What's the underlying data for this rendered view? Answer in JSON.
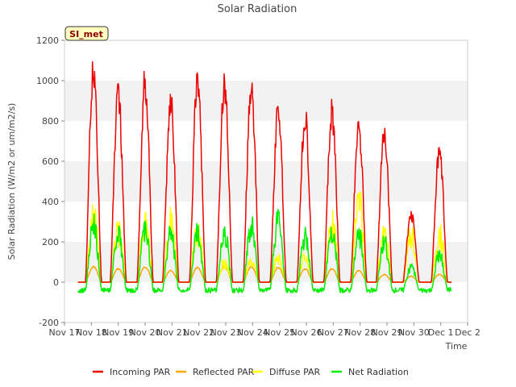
{
  "chart_data": {
    "type": "line",
    "title": "Solar Radiation",
    "xlabel": "Time",
    "ylabel": "Solar Radiation (W/m2 or um/m2/s)",
    "site_label": "SI_met",
    "ylim": [
      -200,
      1200
    ],
    "yticks": [
      -200,
      0,
      200,
      400,
      600,
      800,
      1000,
      1200
    ],
    "xlim": [
      17,
      32
    ],
    "xticks": [
      17,
      18,
      19,
      20,
      21,
      22,
      23,
      24,
      25,
      26,
      27,
      28,
      29,
      30,
      31,
      32
    ],
    "xtick_labels": [
      "Nov 17",
      "Nov 18",
      "Nov 19",
      "Nov 20",
      "Nov 21",
      "Nov 22",
      "Nov 23",
      "Nov 24",
      "Nov 25",
      "Nov 26",
      "Nov 27",
      "Nov 28",
      "Nov 29",
      "Nov 30",
      "Dec 1",
      "Dec 2"
    ],
    "grid": "horizontal bands",
    "legend_position": "bottom",
    "daily": [
      {
        "day": "Nov 18",
        "center": 18.08,
        "incoming_peak": 1140,
        "reflected_peak": 80,
        "diffuse_peak": 430,
        "net_peak": 350
      },
      {
        "day": "Nov 19",
        "center": 19.0,
        "incoming_peak": 1000,
        "reflected_peak": 70,
        "diffuse_peak": 310,
        "net_peak": 290
      },
      {
        "day": "Nov 20",
        "center": 20.0,
        "incoming_peak": 1080,
        "reflected_peak": 80,
        "diffuse_peak": 380,
        "net_peak": 330
      },
      {
        "day": "Nov 21",
        "center": 20.95,
        "incoming_peak": 970,
        "reflected_peak": 60,
        "diffuse_peak": 380,
        "net_peak": 300
      },
      {
        "day": "Nov 22",
        "center": 21.95,
        "incoming_peak": 1090,
        "reflected_peak": 75,
        "diffuse_peak": 320,
        "net_peak": 300
      },
      {
        "day": "Nov 23",
        "center": 22.95,
        "incoming_peak": 1070,
        "reflected_peak": 80,
        "diffuse_peak": 120,
        "net_peak": 305
      },
      {
        "day": "Nov 24",
        "center": 23.95,
        "incoming_peak": 1060,
        "reflected_peak": 80,
        "diffuse_peak": 130,
        "net_peak": 350
      },
      {
        "day": "Nov 25",
        "center": 24.95,
        "incoming_peak": 930,
        "reflected_peak": 75,
        "diffuse_peak": 150,
        "net_peak": 380
      },
      {
        "day": "Nov 26",
        "center": 25.95,
        "incoming_peak": 900,
        "reflected_peak": 70,
        "diffuse_peak": 160,
        "net_peak": 280
      },
      {
        "day": "Nov 27",
        "center": 26.95,
        "incoming_peak": 910,
        "reflected_peak": 70,
        "diffuse_peak": 370,
        "net_peak": 320
      },
      {
        "day": "Nov 28",
        "center": 27.95,
        "incoming_peak": 850,
        "reflected_peak": 60,
        "diffuse_peak": 500,
        "net_peak": 290
      },
      {
        "day": "Nov 29",
        "center": 28.9,
        "incoming_peak": 800,
        "reflected_peak": 40,
        "diffuse_peak": 300,
        "net_peak": 250
      },
      {
        "day": "Nov 30",
        "center": 29.9,
        "incoming_peak": 370,
        "reflected_peak": 30,
        "diffuse_peak": 300,
        "net_peak": 100
      },
      {
        "day": "Dec 1",
        "center": 30.95,
        "incoming_peak": 700,
        "reflected_peak": 40,
        "diffuse_peak": 300,
        "net_peak": 175
      }
    ],
    "net_night_value": -40,
    "series": [
      {
        "name": "Incoming PAR",
        "color": "#ee0000",
        "key": "incoming_peak"
      },
      {
        "name": "Reflected PAR",
        "color": "#ffa500",
        "key": "reflected_peak"
      },
      {
        "name": "Diffuse PAR",
        "color": "#ffff00",
        "key": "diffuse_peak"
      },
      {
        "name": "Net Radiation",
        "color": "#00ee00",
        "key": "net_peak"
      }
    ]
  }
}
